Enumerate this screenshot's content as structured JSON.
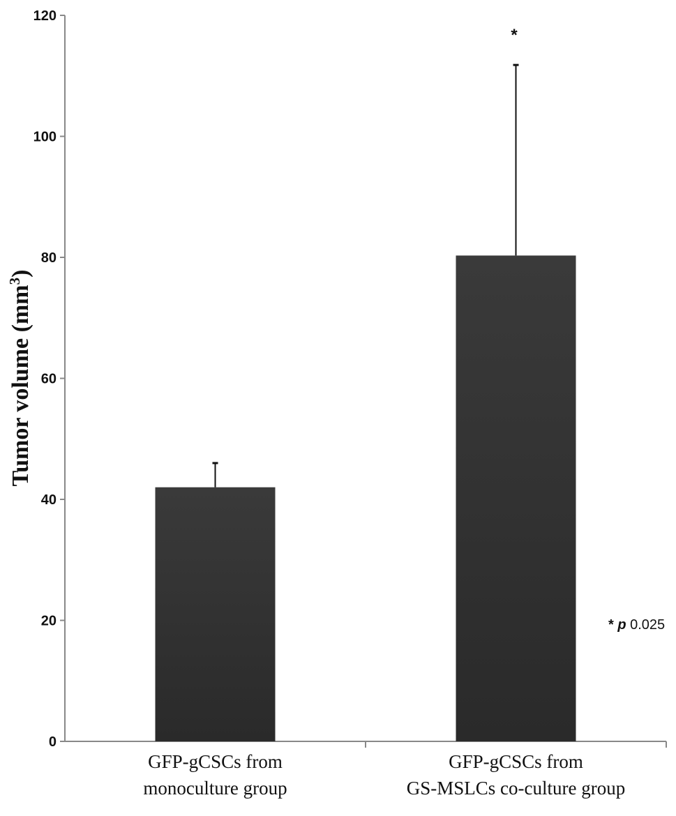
{
  "chart_data": {
    "type": "bar",
    "categories": [
      [
        "GFP-gCSCs from",
        "monoculture group"
      ],
      [
        "GFP-gCSCs from",
        "GS-MSLCs co-culture group"
      ]
    ],
    "values": [
      42,
      80.3
    ],
    "error_upper": [
      46,
      111.8
    ],
    "ylabel": {
      "main": "Tumor volume (mm",
      "superscript": "3",
      "close": ")"
    },
    "ylim": [
      0,
      120
    ],
    "yticks": [
      0,
      20,
      40,
      60,
      80,
      100,
      120
    ],
    "significance_marker": "*",
    "annotation": {
      "star": "* ",
      "p": "p",
      "value": " 0.025"
    },
    "colors": {
      "bar": "#333333",
      "axis": "#888888",
      "error": "#111111"
    },
    "grid": false,
    "legend": "none"
  }
}
